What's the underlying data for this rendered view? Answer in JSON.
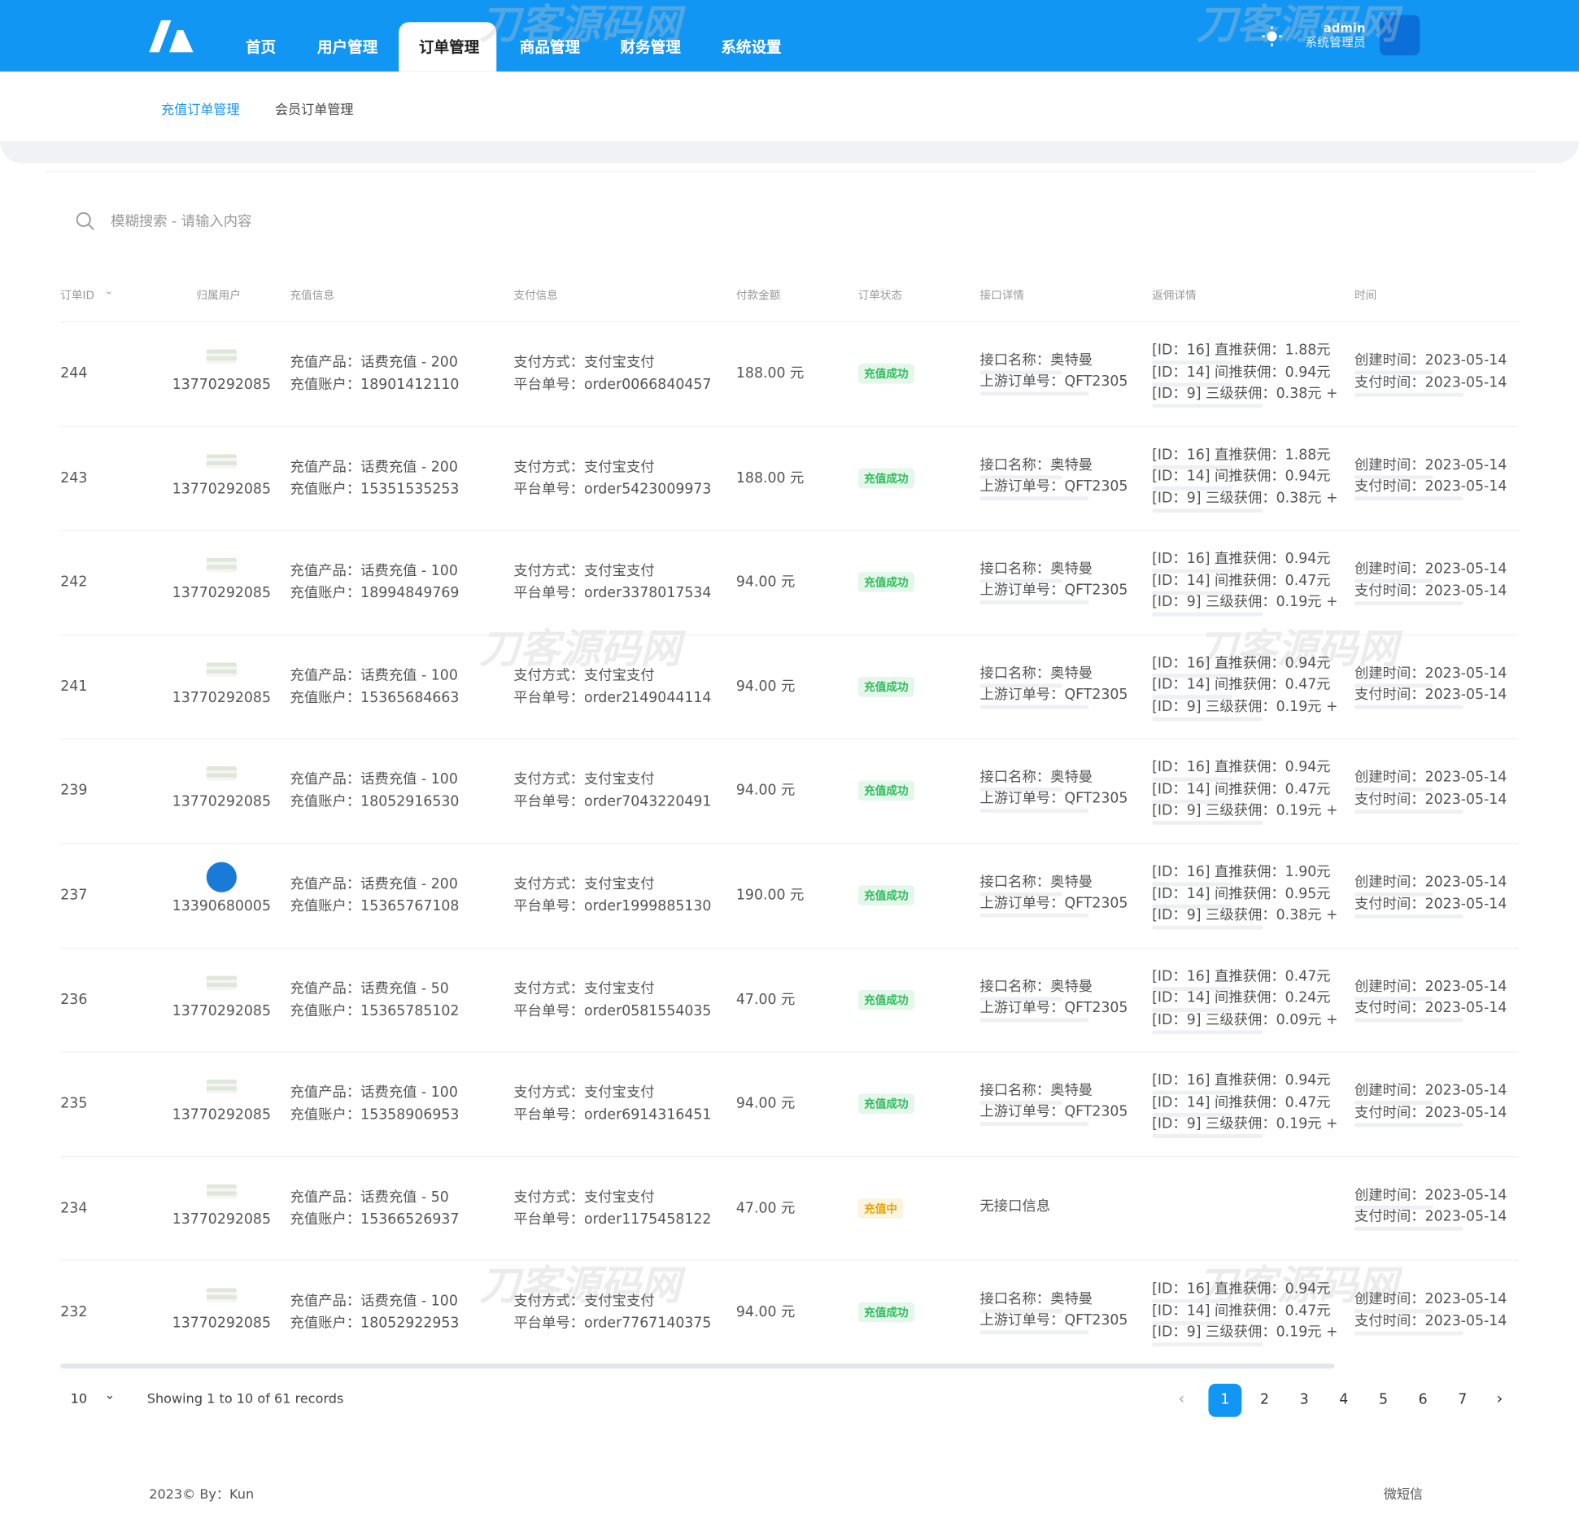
{
  "header": {
    "nav": [
      "首页",
      "用户管理",
      "订单管理",
      "商品管理",
      "财务管理",
      "系统设置"
    ],
    "active": 2,
    "user": "admin",
    "role": "系统管理员"
  },
  "tabs": [
    "充值订单管理",
    "会员订单管理"
  ],
  "search_placeholder": "模糊搜索 - 请输入内容",
  "watermark": "刀客源码网",
  "table": {
    "columns": [
      "订单ID",
      "归属用户",
      "充值信息",
      "支付信息",
      "付款金额",
      "订单状态",
      "接口详情",
      "返佣详情",
      "时间"
    ],
    "rows": [
      {
        "id": "244",
        "user": "13770292085",
        "product": "充值产品：话费充值 - 200",
        "account": "充值账户：18901412110",
        "pay": "支付方式：支付宝支付",
        "order": "平台单号：order0066840457",
        "amount": "188.00 元",
        "status": "充值成功",
        "status_color": "#2dbd5a",
        "api": [
          "接口名称：奥特曼",
          "上游订单号：QFT2305"
        ],
        "rebates": [
          "[ID：16] 直推获佣：1.88元 +",
          "[ID：14] 间推获佣：0.94元 +",
          "[ID：9] 三级获佣：0.38元 +"
        ],
        "time": [
          "创建时间：2023-05-14",
          "支付时间：2023-05-14"
        ]
      },
      {
        "id": "243",
        "user": "13770292085",
        "product": "充值产品：话费充值 - 200",
        "account": "充值账户：15351535253",
        "pay": "支付方式：支付宝支付",
        "order": "平台单号：order5423009973",
        "amount": "188.00 元",
        "status": "充值成功",
        "status_color": "#2dbd5a",
        "api": [
          "接口名称：奥特曼",
          "上游订单号：QFT2305"
        ],
        "rebates": [
          "[ID：16] 直推获佣：1.88元 +",
          "[ID：14] 间推获佣：0.94元 +",
          "[ID：9] 三级获佣：0.38元 +"
        ],
        "time": [
          "创建时间：2023-05-14",
          "支付时间：2023-05-14"
        ]
      },
      {
        "id": "242",
        "user": "13770292085",
        "product": "充值产品：话费充值 - 100",
        "account": "充值账户：18994849769",
        "pay": "支付方式：支付宝支付",
        "order": "平台单号：order3378017534",
        "amount": "94.00 元",
        "status": "充值成功",
        "status_color": "#2dbd5a",
        "api": [
          "接口名称：奥特曼",
          "上游订单号：QFT2305"
        ],
        "rebates": [
          "[ID：16] 直推获佣：0.94元 +",
          "[ID：14] 间推获佣：0.47元 +",
          "[ID：9] 三级获佣：0.19元 +"
        ],
        "time": [
          "创建时间：2023-05-14",
          "支付时间：2023-05-14"
        ]
      },
      {
        "id": "241",
        "user": "13770292085",
        "product": "充值产品：话费充值 - 100",
        "account": "充值账户：15365684663",
        "pay": "支付方式：支付宝支付",
        "order": "平台单号：order2149044114",
        "amount": "94.00 元",
        "status": "充值成功",
        "status_color": "#2dbd5a",
        "api": [
          "接口名称：奥特曼",
          "上游订单号：QFT2305"
        ],
        "rebates": [
          "[ID：16] 直推获佣：0.94元 +",
          "[ID：14] 间推获佣：0.47元 +",
          "[ID：9] 三级获佣：0.19元 +"
        ],
        "time": [
          "创建时间：2023-05-14",
          "支付时间：2023-05-14"
        ]
      },
      {
        "id": "239",
        "user": "13770292085",
        "product": "充值产品：话费充值 - 100",
        "account": "充值账户：18052916530",
        "pay": "支付方式：支付宝支付",
        "order": "平台单号：order7043220491",
        "amount": "94.00 元",
        "status": "充值成功",
        "status_color": "#2dbd5a",
        "api": [
          "接口名称：奥特曼",
          "上游订单号：QFT2305"
        ],
        "rebates": [
          "[ID：16] 直推获佣：0.94元 +",
          "[ID：14] 间推获佣：0.47元 +",
          "[ID：9] 三级获佣：0.19元 +"
        ],
        "time": [
          "创建时间：2023-05-14",
          "支付时间：2023-05-14"
        ]
      },
      {
        "id": "237",
        "user": "13390680005",
        "product": "充值产品：话费充值 - 200",
        "account": "充值账户：15365767108",
        "pay": "支付方式：支付宝支付",
        "order": "平台单号：order1999885130",
        "amount": "190.00 元",
        "status": "充值成功",
        "status_color": "#2dbd5a",
        "api": [
          "接口名称：奥特曼",
          "上游订单号：QFT2305"
        ],
        "rebates": [
          "[ID：16] 直推获佣：1.90元 +",
          "[ID：14] 间推获佣：0.95元 +",
          "[ID：9] 三级获佣：0.38元 +"
        ],
        "time": [
          "创建时间：2023-05-14",
          "支付时间：2023-05-14"
        ]
      },
      {
        "id": "236",
        "user": "13770292085",
        "product": "充值产品：话费充值 - 50",
        "account": "充值账户：15365785102",
        "pay": "支付方式：支付宝支付",
        "order": "平台单号：order0581554035",
        "amount": "47.00 元",
        "status": "充值成功",
        "status_color": "#2dbd5a",
        "api": [
          "接口名称：奥特曼",
          "上游订单号：QFT2305"
        ],
        "rebates": [
          "[ID：16] 直推获佣：0.47元 +",
          "[ID：14] 间推获佣：0.24元 +",
          "[ID：9] 三级获佣：0.09元 +"
        ],
        "time": [
          "创建时间：2023-05-14",
          "支付时间：2023-05-14"
        ]
      },
      {
        "id": "235",
        "user": "13770292085",
        "product": "充值产品：话费充值 - 100",
        "account": "充值账户：15358906953",
        "pay": "支付方式：支付宝支付",
        "order": "平台单号：order6914316451",
        "amount": "94.00 元",
        "status": "充值成功",
        "status_color": "#2dbd5a",
        "api": [
          "接口名称：奥特曼",
          "上游订单号：QFT2305"
        ],
        "rebates": [
          "[ID：16] 直推获佣：0.94元 +",
          "[ID：14] 间推获佣：0.47元 +",
          "[ID：9] 三级获佣：0.19元 +"
        ],
        "time": [
          "创建时间：2023-05-14",
          "支付时间：2023-05-14"
        ]
      },
      {
        "id": "234",
        "user": "13770292085",
        "product": "充值产品：话费充值 - 50",
        "account": "充值账户：15366526937",
        "pay": "支付方式：支付宝支付",
        "order": "平台单号：order1175458122",
        "amount": "47.00 元",
        "status": "充值中",
        "status_color": "#e8a400",
        "api": [
          "无接口信息"
        ],
        "rebates": [],
        "time": [
          "创建时间：2023-05-14",
          "支付时间：2023-05-14"
        ]
      },
      {
        "id": "232",
        "user": "13770292085",
        "product": "充值产品：话费充值 - 100",
        "account": "充值账户：18052922953",
        "pay": "支付方式：支付宝支付",
        "order": "平台单号：order7767140375",
        "amount": "94.00 元",
        "status": "充值成功",
        "status_color": "#2dbd5a",
        "api": [
          "接口名称：奥特曼",
          "上游订单号：QFT2305"
        ],
        "rebates": [
          "[ID：16] 直推获佣：0.94元 +",
          "[ID：14] 间推获佣：0.47元 +",
          "[ID：9] 三级获佣：0.19元 +"
        ],
        "time": [
          "创建时间：2023-05-14",
          "支付时间：2023-05-14"
        ]
      }
    ]
  },
  "pagination": {
    "page_size": "10",
    "summary": "Showing 1 to 10 of 61 records",
    "pages": [
      "1",
      "2",
      "3",
      "4",
      "5",
      "6",
      "7"
    ],
    "current": 0
  },
  "footer": {
    "left": "2023© By：Kun",
    "right": "微短信"
  }
}
